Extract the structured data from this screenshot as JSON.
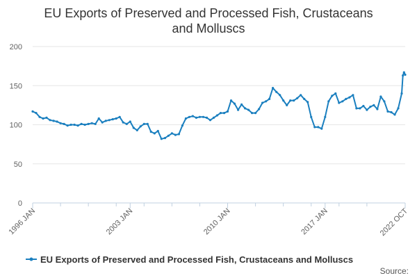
{
  "chart_data": {
    "type": "line",
    "title": "EU Exports of Preserved and Processed Fish, Crustaceans and Molluscs",
    "title_lines": [
      "EU Exports of Preserved and Processed Fish, Crustaceans",
      "and Molluscs"
    ],
    "xlabel": "",
    "ylabel": "",
    "ylim": [
      0,
      200
    ],
    "yticks": [
      0,
      50,
      100,
      150,
      200
    ],
    "xlim": [
      "1996-01",
      "2022-10"
    ],
    "xtick_labels": [
      {
        "label": "1996 JAN",
        "date": "1996-01"
      },
      {
        "label": "2003 JAN",
        "date": "2003-01"
      },
      {
        "label": "2010 JAN",
        "date": "2010-01"
      },
      {
        "label": "2017 JAN",
        "date": "2017-01"
      },
      {
        "label": "2022 OCT",
        "date": "2022-10"
      }
    ],
    "grid": true,
    "legend_position": "bottom",
    "series": [
      {
        "name": "EU Exports of Preserved and Processed Fish, Crustaceans and Molluscs",
        "color": "#1a7fbf",
        "points": [
          [
            "1996-01",
            117
          ],
          [
            "1996-04",
            115
          ],
          [
            "1996-07",
            110
          ],
          [
            "1996-10",
            108
          ],
          [
            "1997-01",
            109
          ],
          [
            "1997-04",
            106
          ],
          [
            "1997-07",
            105
          ],
          [
            "1997-10",
            104
          ],
          [
            "1998-01",
            102
          ],
          [
            "1998-04",
            101
          ],
          [
            "1998-07",
            99
          ],
          [
            "1998-10",
            100
          ],
          [
            "1999-01",
            100
          ],
          [
            "1999-04",
            99
          ],
          [
            "1999-07",
            101
          ],
          [
            "1999-10",
            100
          ],
          [
            "2000-01",
            101
          ],
          [
            "2000-04",
            102
          ],
          [
            "2000-07",
            101
          ],
          [
            "2000-10",
            108
          ],
          [
            "2001-01",
            103
          ],
          [
            "2001-04",
            105
          ],
          [
            "2001-07",
            106
          ],
          [
            "2001-10",
            107
          ],
          [
            "2002-01",
            108
          ],
          [
            "2002-04",
            110
          ],
          [
            "2002-07",
            103
          ],
          [
            "2002-10",
            101
          ],
          [
            "2003-01",
            104
          ],
          [
            "2003-04",
            96
          ],
          [
            "2003-07",
            93
          ],
          [
            "2003-10",
            98
          ],
          [
            "2004-01",
            101
          ],
          [
            "2004-04",
            101
          ],
          [
            "2004-07",
            91
          ],
          [
            "2004-10",
            89
          ],
          [
            "2005-01",
            92
          ],
          [
            "2005-04",
            82
          ],
          [
            "2005-07",
            83
          ],
          [
            "2005-10",
            86
          ],
          [
            "2006-01",
            89
          ],
          [
            "2006-04",
            87
          ],
          [
            "2006-07",
            88
          ],
          [
            "2006-10",
            99
          ],
          [
            "2007-01",
            108
          ],
          [
            "2007-04",
            110
          ],
          [
            "2007-07",
            111
          ],
          [
            "2007-10",
            109
          ],
          [
            "2008-01",
            110
          ],
          [
            "2008-04",
            110
          ],
          [
            "2008-07",
            109
          ],
          [
            "2008-10",
            106
          ],
          [
            "2009-01",
            109
          ],
          [
            "2009-04",
            112
          ],
          [
            "2009-07",
            115
          ],
          [
            "2009-10",
            115
          ],
          [
            "2010-01",
            117
          ],
          [
            "2010-04",
            131
          ],
          [
            "2010-07",
            127
          ],
          [
            "2010-10",
            119
          ],
          [
            "2011-01",
            126
          ],
          [
            "2011-04",
            121
          ],
          [
            "2011-07",
            119
          ],
          [
            "2011-10",
            115
          ],
          [
            "2012-01",
            115
          ],
          [
            "2012-04",
            120
          ],
          [
            "2012-07",
            128
          ],
          [
            "2012-10",
            130
          ],
          [
            "2013-01",
            133
          ],
          [
            "2013-04",
            147
          ],
          [
            "2013-07",
            142
          ],
          [
            "2013-10",
            138
          ],
          [
            "2014-01",
            131
          ],
          [
            "2014-04",
            125
          ],
          [
            "2014-07",
            131
          ],
          [
            "2014-10",
            131
          ],
          [
            "2015-01",
            134
          ],
          [
            "2015-04",
            138
          ],
          [
            "2015-07",
            133
          ],
          [
            "2015-10",
            129
          ],
          [
            "2016-01",
            110
          ],
          [
            "2016-04",
            97
          ],
          [
            "2016-07",
            97
          ],
          [
            "2016-10",
            95
          ],
          [
            "2017-01",
            110
          ],
          [
            "2017-04",
            130
          ],
          [
            "2017-07",
            137
          ],
          [
            "2017-10",
            140
          ],
          [
            "2018-01",
            128
          ],
          [
            "2018-04",
            130
          ],
          [
            "2018-07",
            133
          ],
          [
            "2018-10",
            135
          ],
          [
            "2019-01",
            138
          ],
          [
            "2019-04",
            121
          ],
          [
            "2019-07",
            121
          ],
          [
            "2019-10",
            124
          ],
          [
            "2020-01",
            119
          ],
          [
            "2020-04",
            123
          ],
          [
            "2020-07",
            125
          ],
          [
            "2020-10",
            120
          ],
          [
            "2021-01",
            136
          ],
          [
            "2021-04",
            130
          ],
          [
            "2021-07",
            117
          ],
          [
            "2021-10",
            116
          ],
          [
            "2022-01",
            113
          ],
          [
            "2022-04",
            121
          ],
          [
            "2022-07",
            140
          ],
          [
            "2022-08",
            163
          ],
          [
            "2022-09",
            167
          ],
          [
            "2022-10",
            164
          ]
        ]
      }
    ],
    "source_label": "Source:"
  }
}
